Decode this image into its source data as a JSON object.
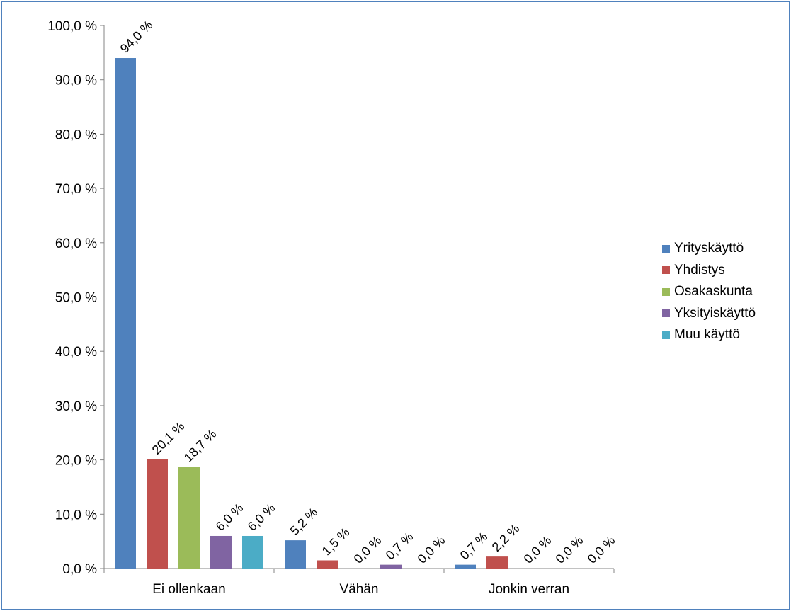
{
  "chart_data": {
    "type": "bar",
    "categories": [
      "Ei ollenkaan",
      "Vähän",
      "Jonkin verran"
    ],
    "series": [
      {
        "name": "Yrityskäyttö",
        "color": "#4f81bd",
        "values": [
          94.0,
          5.2,
          0.7
        ],
        "labels": [
          "94,0 %",
          "5,2 %",
          "0,7 %"
        ]
      },
      {
        "name": "Yhdistys",
        "color": "#c0504d",
        "values": [
          20.1,
          1.5,
          2.2
        ],
        "labels": [
          "20,1 %",
          "1,5 %",
          "2,2 %"
        ]
      },
      {
        "name": "Osakaskunta",
        "color": "#9bbb59",
        "values": [
          18.7,
          0.0,
          0.0
        ],
        "labels": [
          "18,7 %",
          "0,0 %",
          "0,0 %"
        ]
      },
      {
        "name": "Yksityiskäyttö",
        "color": "#8064a2",
        "values": [
          6.0,
          0.7,
          0.0
        ],
        "labels": [
          "6,0 %",
          "0,7 %",
          "0,0 %"
        ]
      },
      {
        "name": "Muu käyttö",
        "color": "#4bacc6",
        "values": [
          6.0,
          0.0,
          0.0
        ],
        "labels": [
          "6,0 %",
          "0,0 %",
          "0,0 %"
        ]
      }
    ],
    "y_ticks": [
      {
        "value": 0,
        "label": "0,0 %"
      },
      {
        "value": 10,
        "label": "10,0 %"
      },
      {
        "value": 20,
        "label": "20,0 %"
      },
      {
        "value": 30,
        "label": "30,0 %"
      },
      {
        "value": 40,
        "label": "40,0 %"
      },
      {
        "value": 50,
        "label": "50,0 %"
      },
      {
        "value": 60,
        "label": "60,0 %"
      },
      {
        "value": 70,
        "label": "70,0 %"
      },
      {
        "value": 80,
        "label": "80,0 %"
      },
      {
        "value": 90,
        "label": "90,0 %"
      },
      {
        "value": 100,
        "label": "100,0 %"
      }
    ],
    "ylim": [
      0,
      100
    ],
    "grid": false,
    "legend": "right",
    "frame_color": "#4f81bd"
  }
}
